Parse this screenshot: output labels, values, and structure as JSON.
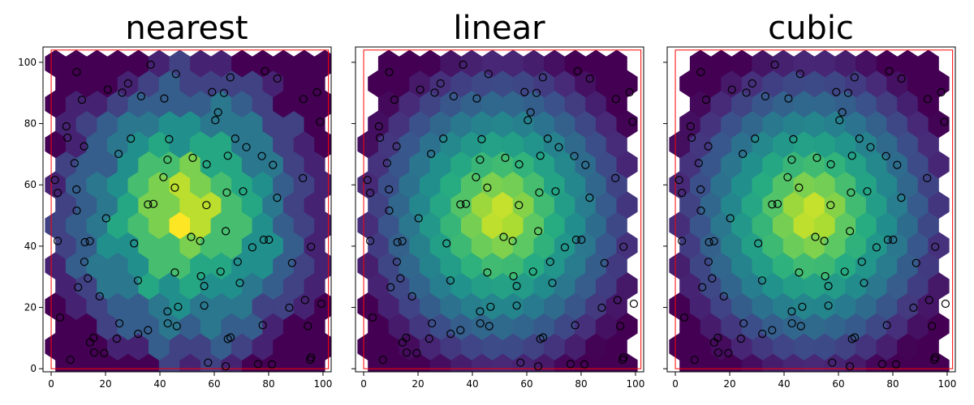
{
  "figure": {
    "panels": [
      {
        "id": "nearest",
        "title": "nearest"
      },
      {
        "id": "linear",
        "title": "linear"
      },
      {
        "id": "cubic",
        "title": "cubic"
      }
    ]
  },
  "chart_data": {
    "type": "heatmap",
    "subtype": "hexbin",
    "colormap": "viridis",
    "domain_xlim": [
      -3,
      103
    ],
    "domain_ylim": [
      -1,
      105
    ],
    "x_ticks": [
      0,
      20,
      40,
      60,
      80,
      100
    ],
    "y_ticks": [
      0,
      20,
      40,
      60,
      80,
      100
    ],
    "bounding_box": {
      "color": "#ff0000",
      "x": [
        0,
        100
      ],
      "y": [
        0,
        100
      ]
    },
    "field": {
      "center": [
        50,
        50
      ],
      "description": "radial peak at center, decreasing outward"
    },
    "panels": [
      {
        "title": "nearest",
        "method": "nearest",
        "coverage": "full",
        "yticks_labeled": true
      },
      {
        "title": "linear",
        "method": "linear",
        "coverage": "convex-hull",
        "yticks_labeled": false
      },
      {
        "title": "cubic",
        "method": "cubic",
        "coverage": "convex-hull",
        "yticks_labeled": false
      }
    ],
    "points": [
      [
        36.6,
        99.2
      ],
      [
        9.4,
        96.8
      ],
      [
        45.9,
        96.2
      ],
      [
        65.9,
        95.1
      ],
      [
        78.7,
        97.1
      ],
      [
        83.2,
        94.7
      ],
      [
        20.8,
        91.1
      ],
      [
        26.1,
        90.1
      ],
      [
        28.3,
        93.1
      ],
      [
        59.2,
        90.3
      ],
      [
        63.6,
        90.0
      ],
      [
        97.8,
        90.2
      ],
      [
        11.3,
        87.8
      ],
      [
        33.1,
        88.9
      ],
      [
        41.6,
        88.2
      ],
      [
        92.8,
        88.0
      ],
      [
        61.4,
        83.7
      ],
      [
        60.4,
        81.1
      ],
      [
        98.9,
        80.6
      ],
      [
        5.6,
        79.1
      ],
      [
        6.0,
        75.4
      ],
      [
        29.3,
        75.1
      ],
      [
        43.4,
        74.9
      ],
      [
        67.7,
        75.1
      ],
      [
        71.8,
        72.3
      ],
      [
        12.1,
        72.6
      ],
      [
        24.8,
        70.1
      ],
      [
        65.0,
        69.5
      ],
      [
        77.5,
        69.4
      ],
      [
        42.8,
        68.2
      ],
      [
        52.1,
        68.8
      ],
      [
        57.2,
        66.7
      ],
      [
        8.6,
        67.1
      ],
      [
        81.6,
        66.5
      ],
      [
        1.4,
        61.6
      ],
      [
        41.3,
        62.5
      ],
      [
        92.6,
        62.2
      ],
      [
        45.5,
        59.1
      ],
      [
        9.3,
        58.5
      ],
      [
        2.4,
        57.4
      ],
      [
        64.6,
        57.5
      ],
      [
        70.6,
        57.9
      ],
      [
        83.1,
        55.8
      ],
      [
        35.6,
        53.6
      ],
      [
        37.6,
        53.8
      ],
      [
        57.1,
        53.4
      ],
      [
        9.4,
        51.6
      ],
      [
        20.2,
        49.1
      ],
      [
        64.2,
        44.9
      ],
      [
        12.4,
        41.3
      ],
      [
        14.2,
        41.6
      ],
      [
        51.5,
        43.0
      ],
      [
        54.8,
        41.7
      ],
      [
        30.5,
        40.9
      ],
      [
        78.2,
        42.1
      ],
      [
        80.1,
        42.1
      ],
      [
        74.0,
        39.6
      ],
      [
        95.6,
        39.8
      ],
      [
        2.4,
        41.7
      ],
      [
        12.2,
        34.9
      ],
      [
        68.6,
        34.9
      ],
      [
        88.6,
        34.5
      ],
      [
        45.5,
        31.4
      ],
      [
        55.1,
        30.2
      ],
      [
        62.3,
        31.7
      ],
      [
        13.5,
        29.5
      ],
      [
        31.9,
        28.8
      ],
      [
        9.9,
        26.6
      ],
      [
        56.3,
        27.0
      ],
      [
        69.4,
        28.0
      ],
      [
        17.8,
        23.6
      ],
      [
        56.3,
        20.6
      ],
      [
        46.7,
        20.2
      ],
      [
        42.8,
        18.7
      ],
      [
        93.4,
        22.4
      ],
      [
        87.6,
        19.9
      ],
      [
        3.3,
        16.7
      ],
      [
        35.6,
        12.6
      ],
      [
        25.1,
        14.8
      ],
      [
        42.9,
        14.8
      ],
      [
        46.2,
        13.9
      ],
      [
        77.8,
        14.2
      ],
      [
        32.0,
        11.4
      ],
      [
        15.6,
        10.1
      ],
      [
        24.1,
        9.8
      ],
      [
        66.0,
        10.2
      ],
      [
        65.0,
        9.7
      ],
      [
        14.3,
        8.6
      ],
      [
        94.4,
        13.9
      ],
      [
        15.8,
        5.3
      ],
      [
        19.5,
        5.1
      ],
      [
        7.1,
        2.9
      ],
      [
        57.7,
        2.0
      ],
      [
        76.1,
        1.5
      ],
      [
        95.3,
        2.9
      ],
      [
        95.6,
        3.7
      ],
      [
        81.2,
        1.4
      ],
      [
        64.2,
        0.8
      ],
      [
        99.4,
        21.2
      ]
    ]
  }
}
